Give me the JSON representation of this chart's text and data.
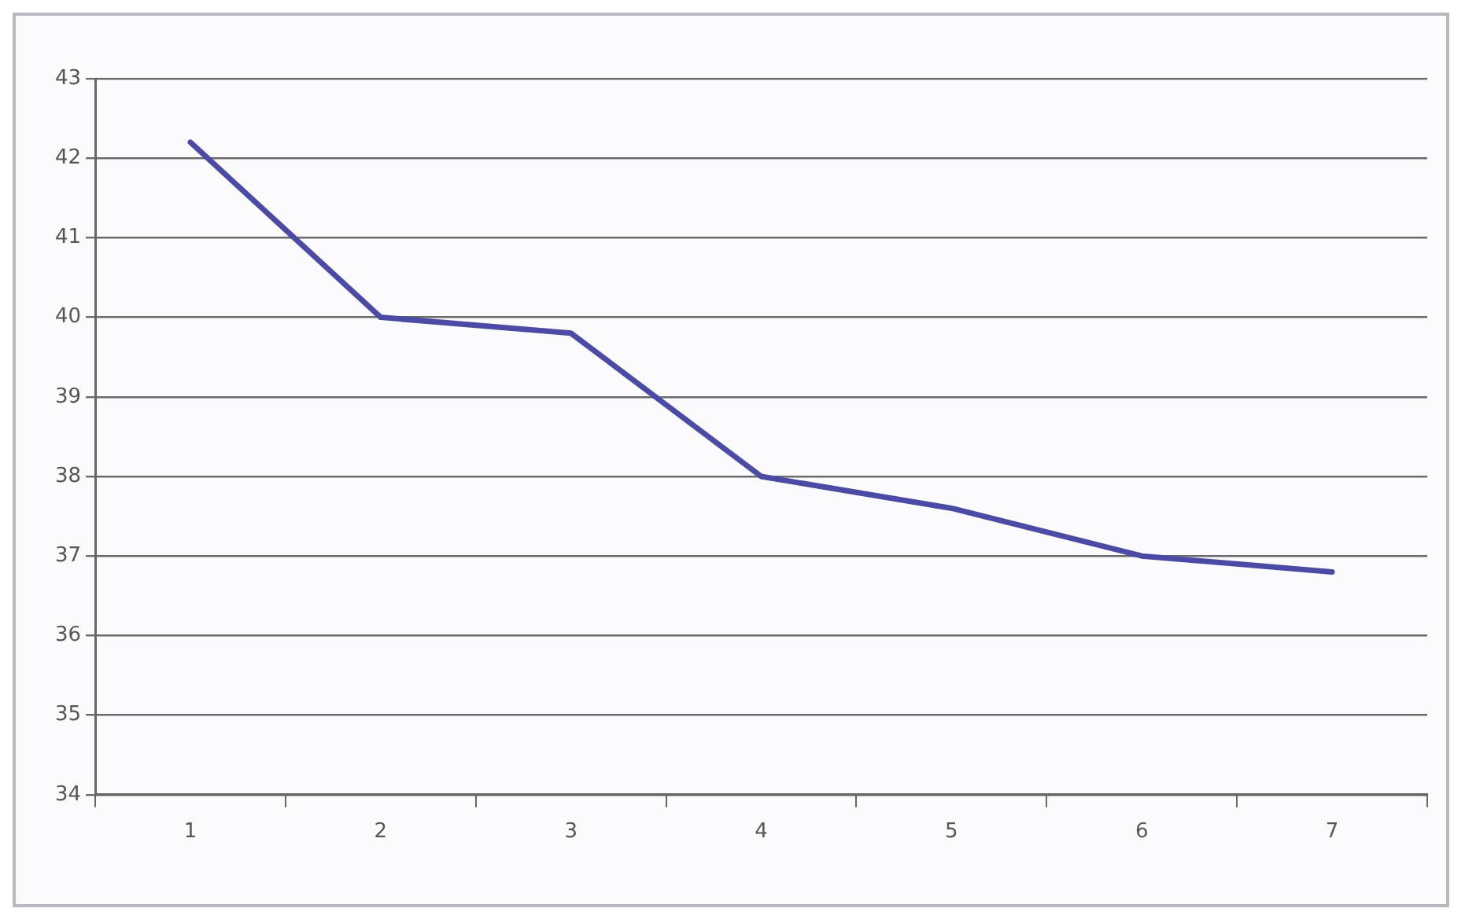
{
  "chart_data": {
    "type": "line",
    "categories": [
      "1",
      "2",
      "3",
      "4",
      "5",
      "6",
      "7"
    ],
    "series": [
      {
        "color": "#4b4ba6",
        "values": [
          42.2,
          40.0,
          39.8,
          38.0,
          37.6,
          37.0,
          36.8
        ]
      }
    ],
    "ylim": [
      34,
      43
    ],
    "yticks": [
      34,
      35,
      36,
      37,
      38,
      39,
      40,
      41,
      42,
      43
    ],
    "grid": "y",
    "legend": false,
    "marker": "none",
    "line_style": "solid"
  }
}
